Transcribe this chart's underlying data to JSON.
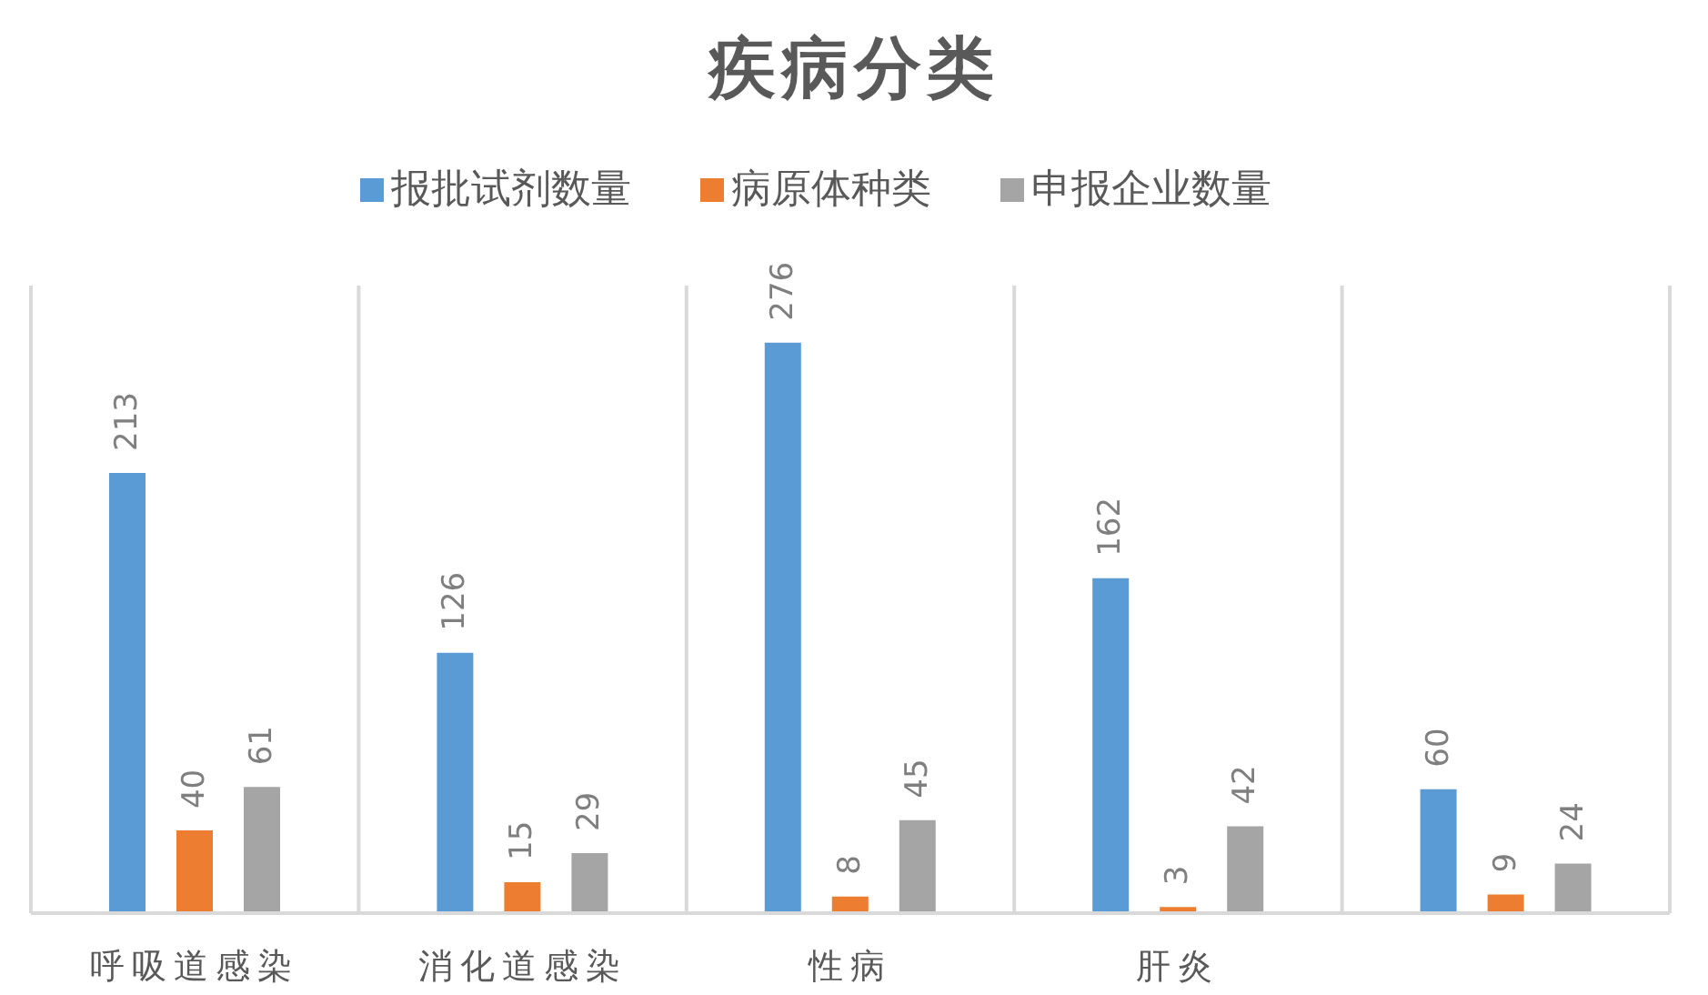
{
  "chart_data": {
    "type": "bar",
    "title": "疾病分类",
    "categories": [
      "呼吸道感染",
      "消化道感染",
      "性病",
      "肝炎",
      null
    ],
    "series": [
      {
        "name": "报批试剂数量",
        "color": "#5b9bd5",
        "values": [
          213,
          126,
          276,
          162,
          60
        ]
      },
      {
        "name": "病原体种类",
        "color": "#ed7d31",
        "values": [
          40,
          15,
          8,
          3,
          9
        ]
      },
      {
        "name": "申报企业数量",
        "color": "#a5a5a5",
        "values": [
          61,
          29,
          45,
          42,
          24
        ]
      }
    ],
    "data_labels": true,
    "legend": "top",
    "grid": "x",
    "tick_labels": "x"
  }
}
